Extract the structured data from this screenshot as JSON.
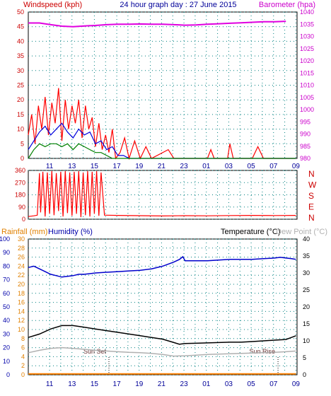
{
  "header": {
    "left_label": "Windspeed (kph)",
    "title": "24 hour graph day : 27 June 2015",
    "right_label": "Barometer (hpa)"
  },
  "colors": {
    "wind_avg": "#0000dd",
    "wind_gust": "#ff0000",
    "wind_low": "#008000",
    "barometer": "#e000e0",
    "temperature": "#000000",
    "humidity": "#0000cc",
    "dewpoint": "#b0b0b0",
    "rainfall": "#ff8000",
    "grid": "#008080",
    "bg": "#ffffff"
  },
  "time_labels": [
    "11",
    "13",
    "15",
    "17",
    "19",
    "21",
    "23",
    "01",
    "03",
    "05",
    "07",
    "09"
  ],
  "chart_data": [
    {
      "type": "line",
      "id": "wind-barometer",
      "yleft": {
        "label": "Windspeed (kph)",
        "ticks": [
          "0",
          "5",
          "10",
          "15",
          "20",
          "25",
          "30",
          "35",
          "40",
          "45",
          "50"
        ],
        "lim": [
          0,
          50
        ]
      },
      "yright": {
        "label": "Barometer (hpa)",
        "ticks": [
          "980",
          "985",
          "990",
          "995",
          "1000",
          "1005",
          "1010",
          "1015",
          "1020",
          "1025",
          "1030",
          "1035",
          "1040"
        ],
        "lim": [
          980,
          1040
        ]
      },
      "series": [
        {
          "key": "barometer",
          "points": [
            [
              0,
              1035.5
            ],
            [
              1,
              1035.5
            ],
            [
              2,
              1034.8
            ],
            [
              3,
              1034.2
            ],
            [
              4,
              1034
            ],
            [
              5,
              1034.3
            ],
            [
              6,
              1034.5
            ],
            [
              7,
              1034.8
            ],
            [
              8,
              1035
            ],
            [
              9,
              1035
            ],
            [
              10,
              1035.1
            ],
            [
              11,
              1035
            ],
            [
              12,
              1035
            ],
            [
              13,
              1034.8
            ],
            [
              14,
              1034.6
            ],
            [
              15,
              1034.7
            ],
            [
              16,
              1035
            ],
            [
              17,
              1035.2
            ],
            [
              18,
              1035.4
            ],
            [
              19,
              1035.6
            ],
            [
              20,
              1035.8
            ],
            [
              21,
              1036
            ],
            [
              22,
              1036
            ],
            [
              23,
              1036.2
            ]
          ]
        },
        {
          "key": "wind_gust",
          "points": [
            [
              0,
              8
            ],
            [
              0.3,
              15
            ],
            [
              0.6,
              5
            ],
            [
              0.9,
              18
            ],
            [
              1.2,
              10
            ],
            [
              1.5,
              21
            ],
            [
              1.8,
              8
            ],
            [
              2.1,
              19
            ],
            [
              2.4,
              12
            ],
            [
              2.7,
              24
            ],
            [
              3,
              6
            ],
            [
              3.3,
              20
            ],
            [
              3.6,
              10
            ],
            [
              3.9,
              18
            ],
            [
              4.2,
              12
            ],
            [
              4.5,
              20
            ],
            [
              4.8,
              7
            ],
            [
              5.1,
              18
            ],
            [
              5.4,
              10
            ],
            [
              5.7,
              14
            ],
            [
              6,
              4
            ],
            [
              6.3,
              12
            ],
            [
              6.6,
              3
            ],
            [
              6.9,
              8
            ],
            [
              7.2,
              2
            ],
            [
              7.5,
              10
            ],
            [
              7.8,
              0
            ],
            [
              8.2,
              2
            ],
            [
              8.6,
              7
            ],
            [
              9,
              0
            ],
            [
              9.5,
              6
            ],
            [
              10,
              0
            ],
            [
              10.5,
              4
            ],
            [
              11,
              0
            ],
            [
              12.5,
              3
            ],
            [
              13,
              0
            ],
            [
              16,
              0
            ],
            [
              16.3,
              3
            ],
            [
              16.6,
              0
            ],
            [
              17.8,
              0
            ],
            [
              18,
              5
            ],
            [
              18.3,
              0
            ],
            [
              20,
              0
            ],
            [
              20.5,
              4
            ],
            [
              21,
              0
            ],
            [
              23.9,
              0
            ]
          ]
        },
        {
          "key": "wind_avg",
          "points": [
            [
              0,
              3
            ],
            [
              0.5,
              6
            ],
            [
              1,
              9
            ],
            [
              1.5,
              11
            ],
            [
              2,
              8
            ],
            [
              2.5,
              10
            ],
            [
              3,
              12
            ],
            [
              3.5,
              9
            ],
            [
              4,
              7
            ],
            [
              4.5,
              10
            ],
            [
              5,
              8
            ],
            [
              5.5,
              9
            ],
            [
              6,
              5
            ],
            [
              6.5,
              6
            ],
            [
              7,
              3
            ],
            [
              7.5,
              4
            ],
            [
              8,
              1
            ],
            [
              8.5,
              1
            ],
            [
              9,
              0
            ],
            [
              23.9,
              0
            ]
          ]
        },
        {
          "key": "wind_low",
          "points": [
            [
              0,
              0
            ],
            [
              0.5,
              3
            ],
            [
              1,
              5
            ],
            [
              1.5,
              4
            ],
            [
              2,
              5
            ],
            [
              2.5,
              5
            ],
            [
              3,
              4
            ],
            [
              3.5,
              5
            ],
            [
              4,
              3
            ],
            [
              4.5,
              5
            ],
            [
              5,
              4
            ],
            [
              5.5,
              3
            ],
            [
              6,
              2
            ],
            [
              6.5,
              2
            ],
            [
              7,
              1
            ],
            [
              7.5,
              0
            ],
            [
              23.9,
              0
            ]
          ]
        }
      ]
    },
    {
      "type": "line",
      "id": "wind-direction",
      "yleft": {
        "ticks": [
          "0",
          "90",
          "180",
          "270",
          "360"
        ],
        "lim": [
          0,
          360
        ]
      },
      "yright": {
        "ticks": [
          "N",
          "W",
          "S",
          "E",
          "N"
        ]
      },
      "series": [
        {
          "key": "wind_gust",
          "points": [
            [
              0,
              20
            ],
            [
              0.5,
              25
            ],
            [
              0.8,
              30
            ],
            [
              1,
              340
            ],
            [
              1.1,
              50
            ],
            [
              1.3,
              350
            ],
            [
              1.5,
              20
            ],
            [
              1.7,
              345
            ],
            [
              1.9,
              40
            ],
            [
              2.1,
              355
            ],
            [
              2.3,
              30
            ],
            [
              2.5,
              340
            ],
            [
              2.7,
              60
            ],
            [
              2.9,
              350
            ],
            [
              3.1,
              20
            ],
            [
              3.3,
              355
            ],
            [
              3.5,
              45
            ],
            [
              3.7,
              345
            ],
            [
              3.9,
              25
            ],
            [
              4.1,
              350
            ],
            [
              4.3,
              40
            ],
            [
              4.5,
              355
            ],
            [
              4.7,
              15
            ],
            [
              4.9,
              345
            ],
            [
              5.1,
              30
            ],
            [
              5.3,
              355
            ],
            [
              5.5,
              20
            ],
            [
              5.7,
              350
            ],
            [
              5.9,
              40
            ],
            [
              6.1,
              355
            ],
            [
              6.3,
              25
            ],
            [
              6.5,
              345
            ],
            [
              6.8,
              30
            ],
            [
              7,
              30
            ],
            [
              8,
              28
            ],
            [
              10,
              26
            ],
            [
              12,
              24
            ],
            [
              14,
              26
            ],
            [
              16,
              25
            ],
            [
              18,
              27
            ],
            [
              20,
              28
            ],
            [
              22,
              27
            ],
            [
              23.9,
              28
            ]
          ]
        }
      ]
    },
    {
      "type": "line",
      "id": "temp-humidity-rain",
      "header": {
        "rain_label": "Rainfall (mm)",
        "humidity_label": "Humidity (%)",
        "temp_label": "Temperature (°C)",
        "dew_label": "Dew Point (°C)"
      },
      "y_humidity": {
        "ticks": [
          "0",
          "10",
          "20",
          "30",
          "40",
          "50",
          "60",
          "70",
          "80",
          "90",
          "100"
        ],
        "lim": [
          0,
          100
        ]
      },
      "y_rain": {
        "ticks": [
          "0",
          "2",
          "4",
          "6",
          "8",
          "10",
          "12",
          "14",
          "16",
          "18",
          "20",
          "22",
          "24",
          "26",
          "28",
          "30"
        ],
        "lim": [
          0,
          30
        ]
      },
      "y_temp": {
        "ticks": [
          "0",
          "5",
          "10",
          "15",
          "20",
          "25",
          "30",
          "35",
          "40"
        ],
        "lim": [
          0,
          40
        ]
      },
      "annotations": [
        {
          "label": "Sun Set",
          "x": 7.2
        },
        {
          "label": "Sun Rise",
          "x": 22.3
        }
      ],
      "series": [
        {
          "key": "humidity",
          "points": [
            [
              0,
              79
            ],
            [
              0.5,
              80
            ],
            [
              1,
              78
            ],
            [
              1.5,
              76
            ],
            [
              2,
              74
            ],
            [
              2.5,
              73
            ],
            [
              3,
              72
            ],
            [
              3.5,
              72.5
            ],
            [
              4,
              73
            ],
            [
              4.5,
              74
            ],
            [
              5,
              74
            ],
            [
              6,
              75
            ],
            [
              7,
              75.5
            ],
            [
              8,
              76
            ],
            [
              9,
              76.5
            ],
            [
              10,
              77
            ],
            [
              11,
              78
            ],
            [
              12,
              80
            ],
            [
              13,
              83
            ],
            [
              13.5,
              85
            ],
            [
              13.8,
              87
            ],
            [
              14,
              84
            ],
            [
              15,
              84
            ],
            [
              16,
              84
            ],
            [
              17,
              84.5
            ],
            [
              18,
              85
            ],
            [
              19,
              85
            ],
            [
              20,
              85
            ],
            [
              21,
              85.5
            ],
            [
              22,
              86
            ],
            [
              22.5,
              86.5
            ],
            [
              23,
              86
            ],
            [
              23.5,
              85.5
            ],
            [
              23.9,
              85
            ]
          ]
        },
        {
          "key": "temperature",
          "points": [
            [
              0,
              11
            ],
            [
              1,
              12
            ],
            [
              2,
              13.5
            ],
            [
              3,
              14.5
            ],
            [
              4,
              14.5
            ],
            [
              5,
              14
            ],
            [
              6,
              13.5
            ],
            [
              7,
              13
            ],
            [
              8,
              12.5
            ],
            [
              9,
              12
            ],
            [
              10,
              11.5
            ],
            [
              11,
              11
            ],
            [
              12,
              10.5
            ],
            [
              13,
              9.5
            ],
            [
              13.5,
              9
            ],
            [
              14,
              9.2
            ],
            [
              15,
              9.3
            ],
            [
              16,
              9.4
            ],
            [
              17,
              9.5
            ],
            [
              18,
              9.6
            ],
            [
              19,
              9.6
            ],
            [
              20,
              9.8
            ],
            [
              21,
              10
            ],
            [
              22,
              10.2
            ],
            [
              23,
              10.4
            ],
            [
              23.5,
              11
            ],
            [
              23.9,
              11.5
            ]
          ]
        },
        {
          "key": "dewpoint",
          "points": [
            [
              0,
              6.5
            ],
            [
              1,
              7.2
            ],
            [
              2,
              7.8
            ],
            [
              3,
              8
            ],
            [
              4,
              7.8
            ],
            [
              5,
              7.5
            ],
            [
              6,
              7.2
            ],
            [
              7,
              7
            ],
            [
              8,
              6.8
            ],
            [
              9,
              6.6
            ],
            [
              10,
              6.5
            ],
            [
              11,
              6.3
            ],
            [
              12,
              6
            ],
            [
              13,
              5.5
            ],
            [
              14,
              5.6
            ],
            [
              15,
              5.8
            ],
            [
              16,
              6
            ],
            [
              17,
              6.1
            ],
            [
              18,
              6.2
            ],
            [
              19,
              6.3
            ],
            [
              20,
              6.4
            ],
            [
              21,
              6.5
            ],
            [
              22,
              6.6
            ],
            [
              23,
              6.8
            ],
            [
              23.9,
              7
            ]
          ]
        },
        {
          "key": "rainfall",
          "points": [
            [
              0,
              0.2
            ],
            [
              23.9,
              0.2
            ]
          ]
        }
      ]
    }
  ]
}
